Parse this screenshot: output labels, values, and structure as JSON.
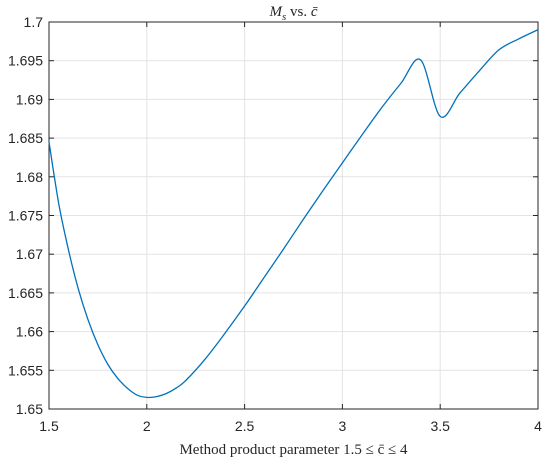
{
  "chart_data": {
    "type": "line",
    "title": "M_s vs. c̄",
    "title_parts": {
      "main": "M",
      "sub": "s",
      "mid": " vs. ",
      "var": "c̄"
    },
    "xlabel": "Method product parameter 1.5 ≤ c̄ ≤ 4",
    "ylabel": "",
    "xlim": [
      1.5,
      4
    ],
    "ylim": [
      1.65,
      1.7
    ],
    "xticks": [
      1.5,
      2,
      2.5,
      3,
      3.5,
      4
    ],
    "xtick_labels": [
      "1.5",
      "2",
      "2.5",
      "3",
      "3.5",
      "4"
    ],
    "yticks": [
      1.65,
      1.655,
      1.66,
      1.665,
      1.67,
      1.675,
      1.68,
      1.685,
      1.69,
      1.695,
      1.7
    ],
    "ytick_labels": [
      "1.65",
      "1.655",
      "1.66",
      "1.665",
      "1.67",
      "1.675",
      "1.68",
      "1.685",
      "1.69",
      "1.695",
      "1.7"
    ],
    "grid": true,
    "line_color": "#0072BD",
    "series": [
      {
        "x": [
          1.5,
          1.55,
          1.6,
          1.65,
          1.7,
          1.75,
          1.8,
          1.85,
          1.9,
          1.95,
          2.0,
          2.05,
          2.1,
          2.15,
          2.2,
          2.3,
          2.4,
          2.5,
          2.6,
          2.7,
          2.8,
          2.9,
          3.0,
          3.1,
          3.2,
          3.3,
          3.4,
          3.5,
          3.6,
          3.7,
          3.8,
          3.9,
          4.0
        ],
        "values": [
          1.6845,
          1.6765,
          1.6705,
          1.6655,
          1.6615,
          1.6583,
          1.6558,
          1.654,
          1.6527,
          1.6518,
          1.6515,
          1.6516,
          1.652,
          1.6527,
          1.6537,
          1.6565,
          1.6598,
          1.6633,
          1.667,
          1.6707,
          1.6745,
          1.6782,
          1.6818,
          1.6854,
          1.6889,
          1.6921,
          1.6951,
          1.6878,
          1.6908,
          1.6937,
          1.6964,
          1.6978,
          1.699
        ]
      }
    ]
  }
}
